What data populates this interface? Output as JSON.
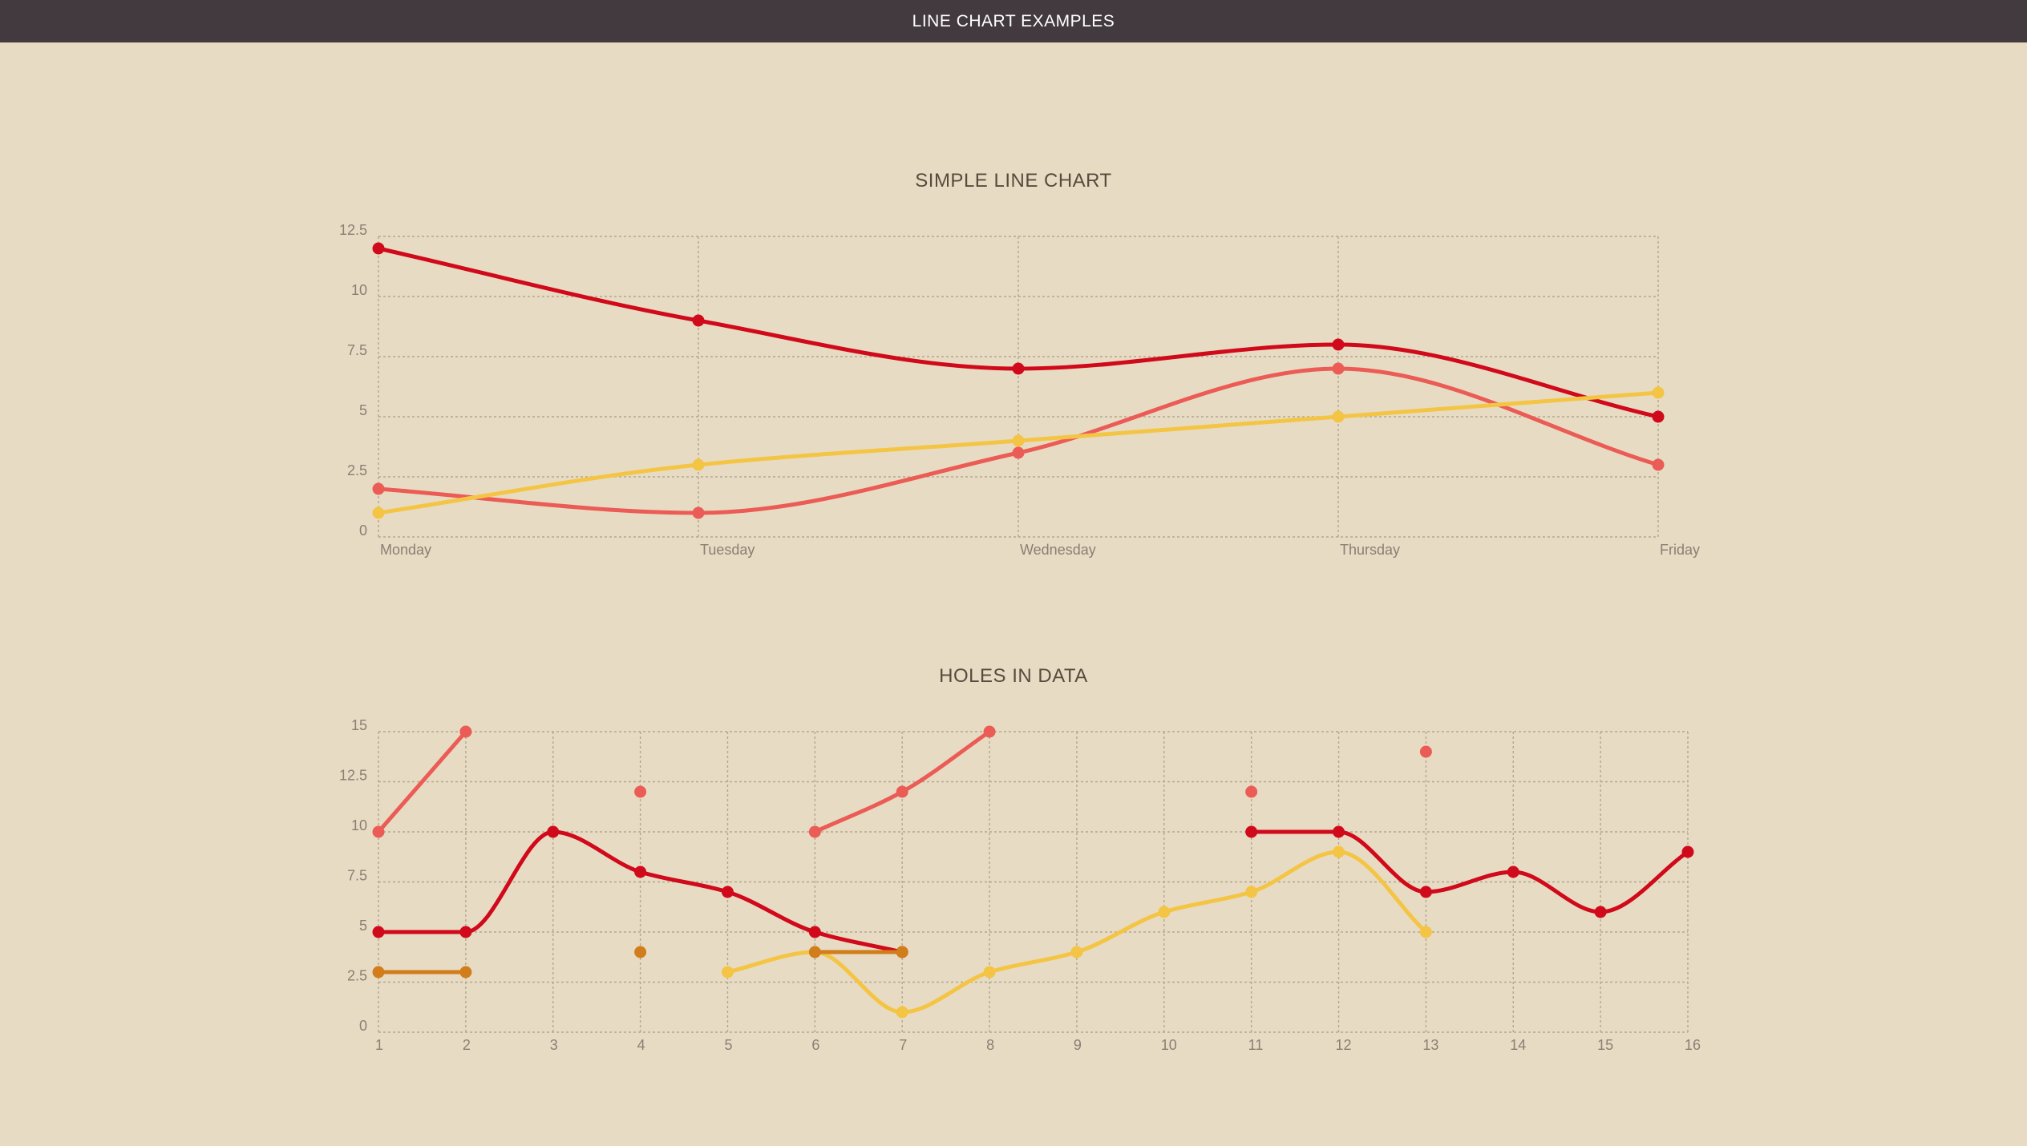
{
  "header": {
    "title": "LINE CHART EXAMPLES"
  },
  "chart_data": [
    {
      "type": "line",
      "title": "SIMPLE LINE CHART",
      "categories": [
        "Monday",
        "Tuesday",
        "Wednesday",
        "Thursday",
        "Friday"
      ],
      "ylim": [
        0,
        12.5
      ],
      "yticks": [
        "0",
        "2.5",
        "5",
        "7.5",
        "10",
        "12.5"
      ],
      "grid": true,
      "smooth": true,
      "series": [
        {
          "color": "#d0091b",
          "values": [
            12,
            9,
            7,
            8,
            5
          ]
        },
        {
          "color": "#ea5c55",
          "values": [
            2,
            1,
            3.5,
            7,
            3
          ]
        },
        {
          "color": "#f4c544",
          "values": [
            1,
            3,
            4,
            5,
            6
          ]
        }
      ]
    },
    {
      "type": "line",
      "title": "HOLES IN DATA",
      "categories": [
        "1",
        "2",
        "3",
        "4",
        "5",
        "6",
        "7",
        "8",
        "9",
        "10",
        "11",
        "12",
        "13",
        "14",
        "15",
        "16"
      ],
      "ylim": [
        0,
        15
      ],
      "yticks": [
        "0",
        "2.5",
        "5",
        "7.5",
        "10",
        "12.5",
        "15"
      ],
      "grid": true,
      "smooth": true,
      "series": [
        {
          "color": "#d0091b",
          "values": [
            5,
            5,
            10,
            8,
            7,
            5,
            4,
            null,
            null,
            null,
            10,
            10,
            7,
            8,
            6,
            9
          ]
        },
        {
          "color": "#ea5c55",
          "values": [
            10,
            15,
            null,
            12,
            null,
            10,
            12,
            15,
            null,
            null,
            12,
            null,
            14,
            null,
            null,
            null
          ]
        },
        {
          "color": "#f4c544",
          "values": [
            null,
            null,
            null,
            null,
            3,
            4,
            1,
            3,
            4,
            6,
            7,
            9,
            5,
            null,
            null,
            null
          ]
        },
        {
          "color": "#d17d1b",
          "values": [
            3,
            3,
            null,
            4,
            null,
            4,
            4,
            null,
            null,
            null,
            null,
            null,
            null,
            null,
            null,
            null
          ]
        }
      ]
    }
  ]
}
